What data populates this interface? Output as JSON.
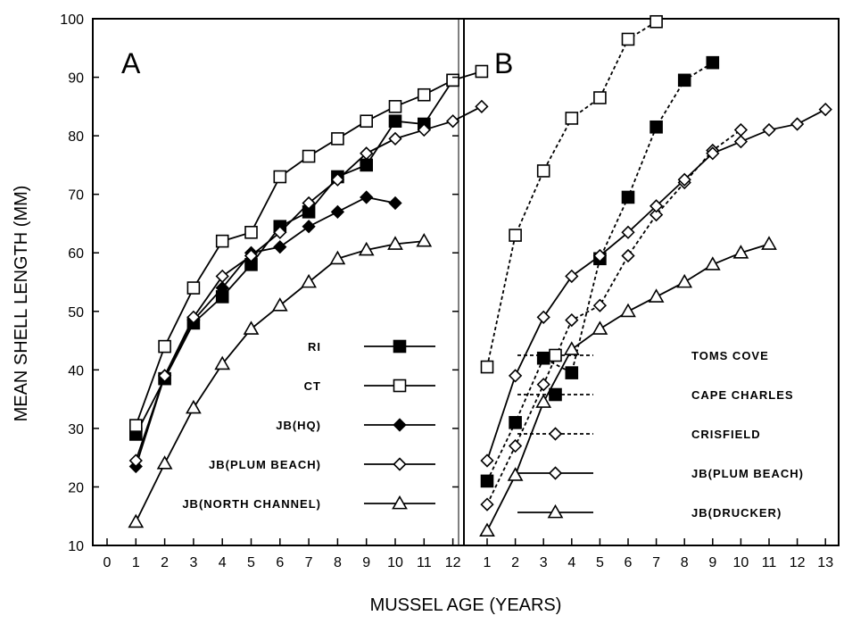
{
  "chart_data": [
    {
      "panel": "A",
      "type": "line",
      "xlim": [
        0,
        13
      ],
      "ylim": [
        10,
        100
      ],
      "x_ticks": [
        "0",
        "1",
        "2",
        "3",
        "4",
        "5",
        "6",
        "7",
        "8",
        "9",
        "10",
        "11",
        "12"
      ],
      "y_ticks": [
        "10",
        "20",
        "30",
        "40",
        "50",
        "60",
        "70",
        "80",
        "90",
        "100"
      ],
      "legend_placement": "bottom-right",
      "grid": false,
      "series": [
        {
          "name": "RI",
          "marker": "square-filled",
          "line": "solid",
          "x": [
            1,
            2,
            3,
            4,
            5,
            6,
            7,
            8,
            9,
            10,
            11,
            12
          ],
          "y": [
            29,
            38.5,
            48,
            52.5,
            58,
            64.5,
            67,
            73,
            75,
            82.5,
            82,
            89.5
          ]
        },
        {
          "name": "CT",
          "marker": "square-open",
          "line": "solid",
          "x": [
            1,
            2,
            3,
            4,
            5,
            6,
            7,
            8,
            9,
            10,
            11,
            12,
            13
          ],
          "y": [
            30.5,
            44,
            54,
            62,
            63.5,
            73,
            76.5,
            79.5,
            82.5,
            85,
            87,
            89.5,
            91
          ]
        },
        {
          "name": "JB(HQ)",
          "marker": "diamond-filled",
          "line": "solid",
          "x": [
            1,
            2,
            3,
            4,
            5,
            6,
            7,
            8,
            9,
            10
          ],
          "y": [
            23.5,
            39,
            48.5,
            54,
            60,
            61,
            64.5,
            67,
            69.5,
            68.5
          ]
        },
        {
          "name": "JB(PLUM BEACH)",
          "marker": "diamond-open",
          "line": "solid",
          "x": [
            1,
            2,
            3,
            4,
            5,
            6,
            7,
            8,
            9,
            10,
            11,
            12,
            13
          ],
          "y": [
            24.5,
            39,
            49,
            56,
            59.5,
            63.5,
            68.5,
            72.5,
            77,
            79.5,
            81,
            82.5,
            85
          ]
        },
        {
          "name": "JB(NORTH CHANNEL)",
          "marker": "triangle-open",
          "line": "solid",
          "x": [
            1,
            2,
            3,
            4,
            5,
            6,
            7,
            8,
            9,
            10,
            11
          ],
          "y": [
            14,
            24,
            33.5,
            41,
            47,
            51,
            55,
            59,
            60.5,
            61.5,
            62
          ]
        }
      ]
    },
    {
      "panel": "B",
      "type": "line",
      "xlim": [
        0.9,
        13
      ],
      "ylim": [
        10,
        100
      ],
      "x_ticks": [
        "1",
        "2",
        "3",
        "4",
        "5",
        "6",
        "7",
        "8",
        "9",
        "10",
        "11",
        "12",
        "13"
      ],
      "legend_placement": "bottom-right",
      "grid": false,
      "series": [
        {
          "name": "TOMS COVE",
          "marker": "square-open",
          "line": "dashed",
          "x": [
            1,
            2,
            3,
            4,
            5,
            6,
            7
          ],
          "y": [
            40.5,
            63,
            74,
            83,
            86.5,
            96.5,
            99.5
          ]
        },
        {
          "name": "CAPE CHARLES",
          "marker": "square-filled",
          "line": "dashed",
          "x": [
            1,
            2,
            3,
            4,
            5,
            6,
            7,
            8,
            9
          ],
          "y": [
            21,
            31,
            42,
            39.5,
            59,
            69.5,
            81.5,
            89.5,
            92.5
          ]
        },
        {
          "name": "CRISFIELD",
          "marker": "diamond-open",
          "line": "dashed",
          "x": [
            1,
            2,
            3,
            4,
            5,
            6,
            7,
            8,
            9,
            10
          ],
          "y": [
            17,
            27,
            37.5,
            48.5,
            51,
            59.5,
            66.5,
            72,
            77.5,
            81
          ]
        },
        {
          "name": "JB(PLUM BEACH)",
          "marker": "diamond-open",
          "line": "solid",
          "x": [
            1,
            2,
            3,
            4,
            5,
            6,
            7,
            8,
            9,
            10,
            11,
            12,
            13
          ],
          "y": [
            24.5,
            39,
            49,
            56,
            59.5,
            63.5,
            68,
            72.5,
            77,
            79,
            81,
            82,
            84.5
          ]
        },
        {
          "name": "JB(DRUCKER)",
          "marker": "triangle-open",
          "line": "solid",
          "x": [
            1,
            2,
            3,
            4,
            5,
            6,
            7,
            8,
            9,
            10,
            11
          ],
          "y": [
            12.5,
            22,
            34.5,
            43.5,
            47,
            50,
            52.5,
            55,
            58,
            60,
            61.5
          ]
        }
      ]
    }
  ],
  "axes": {
    "ylabel": "MEAN SHELL LENGTH (MM)",
    "xlabel": "MUSSEL AGE (YEARS)"
  }
}
